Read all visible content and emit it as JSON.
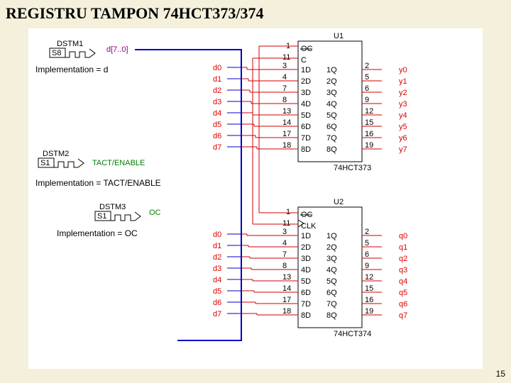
{
  "title": "REGISTRU TAMPON 74HCT373/374",
  "pageno": "15",
  "stims": [
    {
      "name": "DSTM1",
      "knob": "S8",
      "label": "d[7..0]",
      "impl": "Implementation = d"
    },
    {
      "name": "DSTM2",
      "knob": "S1",
      "label": "TACT/ENABLE",
      "impl": "Implementation = TACT/ENABLE"
    },
    {
      "name": "DSTM3",
      "knob": "S1",
      "label": "OC",
      "impl": "Implementation = OC"
    }
  ],
  "dlabels": [
    "d0",
    "d1",
    "d2",
    "d3",
    "d4",
    "d5",
    "d6",
    "d7"
  ],
  "ic1": {
    "ref": "U1",
    "part": "74HCT373",
    "clk": "C",
    "pinsL": [
      "1",
      "11",
      "3",
      "4",
      "7",
      "8",
      "13",
      "14",
      "17",
      "18"
    ],
    "lblL": [
      "OC",
      "C",
      "1D",
      "2D",
      "3D",
      "4D",
      "5D",
      "6D",
      "7D",
      "8D"
    ],
    "lblR": [
      "1Q",
      "2Q",
      "3Q",
      "4Q",
      "5Q",
      "6Q",
      "7Q",
      "8Q"
    ],
    "pinsR": [
      "2",
      "5",
      "6",
      "9",
      "12",
      "15",
      "16",
      "19"
    ],
    "out": [
      "y0",
      "y1",
      "y2",
      "y3",
      "y4",
      "y5",
      "y6",
      "y7"
    ]
  },
  "ic2": {
    "ref": "U2",
    "part": "74HCT374",
    "clk": "CLK",
    "pinsL": [
      "1",
      "11",
      "3",
      "4",
      "7",
      "8",
      "13",
      "14",
      "17",
      "18"
    ],
    "lblL": [
      "OC",
      "CLK",
      "1D",
      "2D",
      "3D",
      "4D",
      "5D",
      "6D",
      "7D",
      "8D"
    ],
    "lblR": [
      "1Q",
      "2Q",
      "3Q",
      "4Q",
      "5Q",
      "6Q",
      "7Q",
      "8Q"
    ],
    "pinsR": [
      "2",
      "5",
      "6",
      "9",
      "12",
      "15",
      "16",
      "19"
    ],
    "out": [
      "q0",
      "q1",
      "q2",
      "q3",
      "q4",
      "q5",
      "q6",
      "q7"
    ]
  },
  "colors": {
    "bus": "#0000cc",
    "wire": "#d00000",
    "ic": "#000",
    "bg": "#fff"
  }
}
